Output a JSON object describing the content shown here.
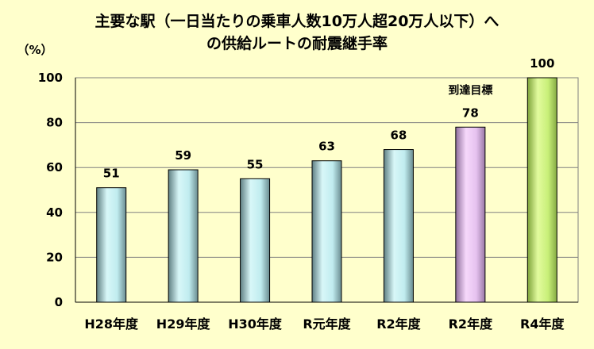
{
  "chart_data": {
    "type": "bar",
    "title": "主要な駅（一日当たりの乗車人数10万人超20万人以下）へ\nの供給ルートの耐震継手率",
    "title_lines": [
      "主要な駅（一日当たりの乗車人数10万人超20万人以下）へ",
      "の供給ルートの耐震継手率"
    ],
    "ylabel": "（%）",
    "xlabel": "",
    "categories": [
      "H28年度",
      "H29年度",
      "H30年度",
      "R元年度",
      "R2年度",
      "R2年度",
      "R4年度"
    ],
    "values": [
      51,
      59,
      55,
      63,
      68,
      78,
      100
    ],
    "data_labels": [
      "51",
      "59",
      "55",
      "63",
      "68",
      "78",
      "100"
    ],
    "yticks": [
      "0",
      "20",
      "40",
      "60",
      "80",
      "100"
    ],
    "ylim": [
      0,
      100
    ],
    "grid": true,
    "annotations": [
      {
        "category_index": 5,
        "text": "到達目標"
      }
    ],
    "bar_colors": [
      "#c6eef0",
      "#c6eef0",
      "#c6eef0",
      "#c6eef0",
      "#c6eef0",
      "#e8c4f0",
      "#c4f07a"
    ],
    "legend": "none"
  }
}
